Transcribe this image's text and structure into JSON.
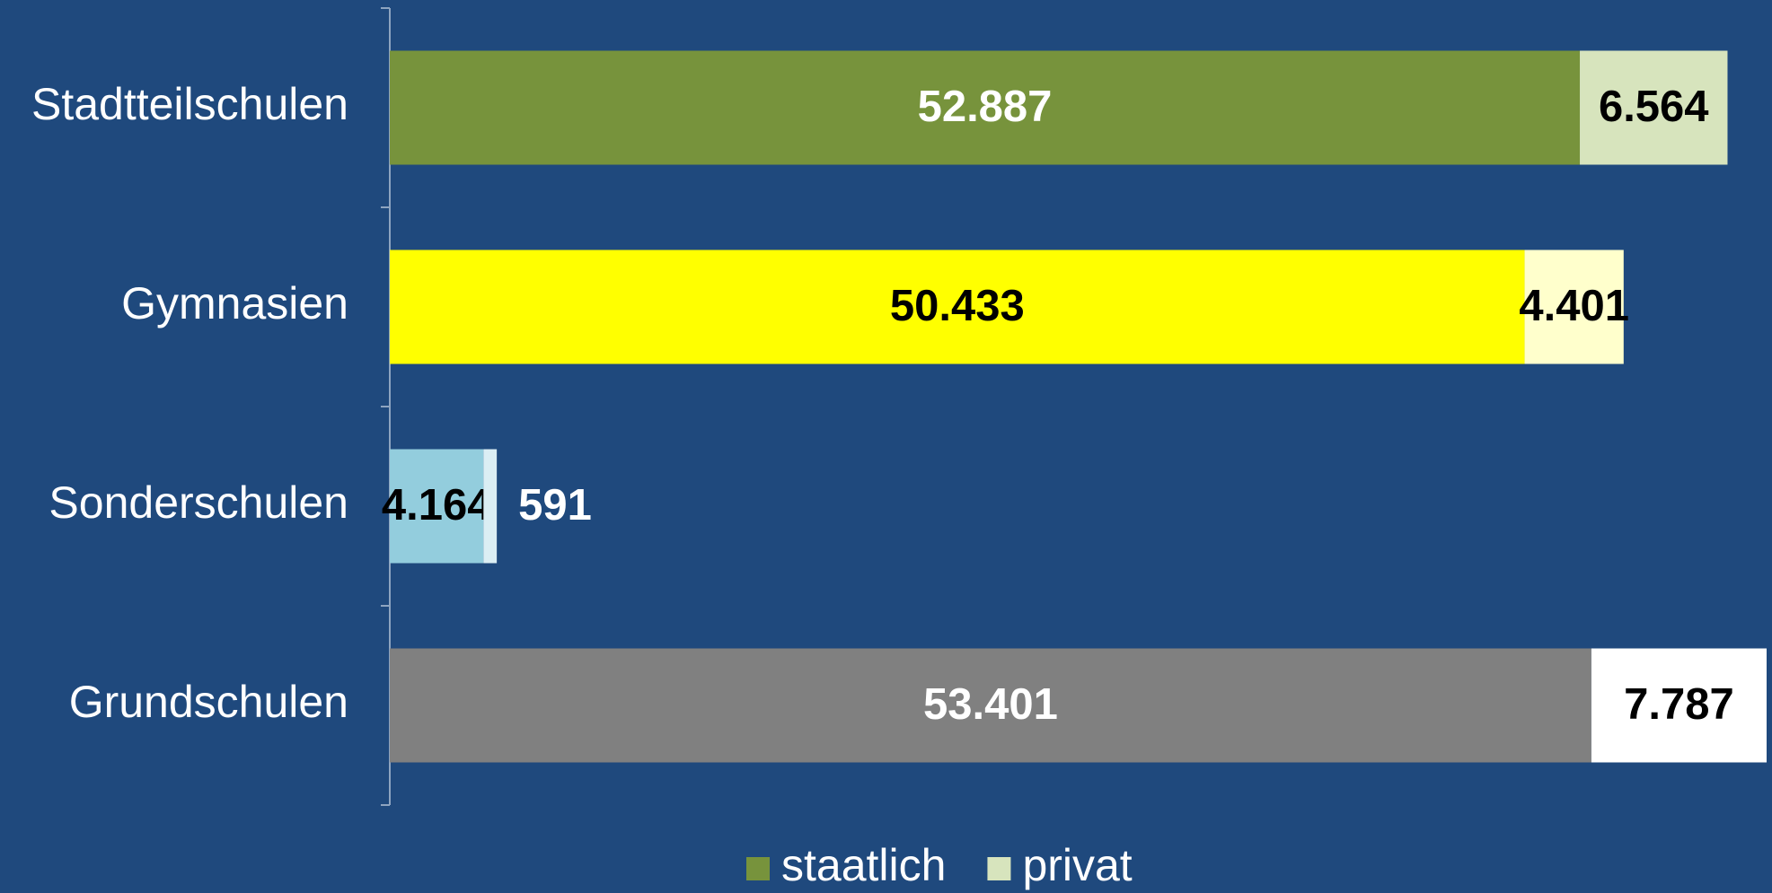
{
  "chart_data": {
    "type": "bar",
    "orientation": "horizontal",
    "stacked": true,
    "categories": [
      "Stadtteilschulen",
      "Gymnasien",
      "Sonderschulen",
      "Grundschulen"
    ],
    "series": [
      {
        "name": "staatlich",
        "color": "#77933c",
        "point_colors": [
          "#77933c",
          "#ffff00",
          "#93cddd",
          "#808080"
        ],
        "label_colors": [
          "#ffffff",
          "#000000",
          "#000000",
          "#ffffff"
        ],
        "values": [
          52887,
          50433,
          4164,
          53401
        ],
        "value_labels": [
          "52.887",
          "50.433",
          "4.164",
          "53.401"
        ]
      },
      {
        "name": "privat",
        "color": "#d7e4bd",
        "point_colors": [
          "#d7e4bd",
          "#ffffcc",
          "#dbeef4",
          "#ffffff"
        ],
        "label_colors": [
          "#000000",
          "#000000",
          "#ffffff",
          "#000000"
        ],
        "values": [
          6564,
          4401,
          591,
          7787
        ],
        "value_labels": [
          "6.564",
          "4.401",
          "591",
          "7.787"
        ]
      }
    ]
  }
}
